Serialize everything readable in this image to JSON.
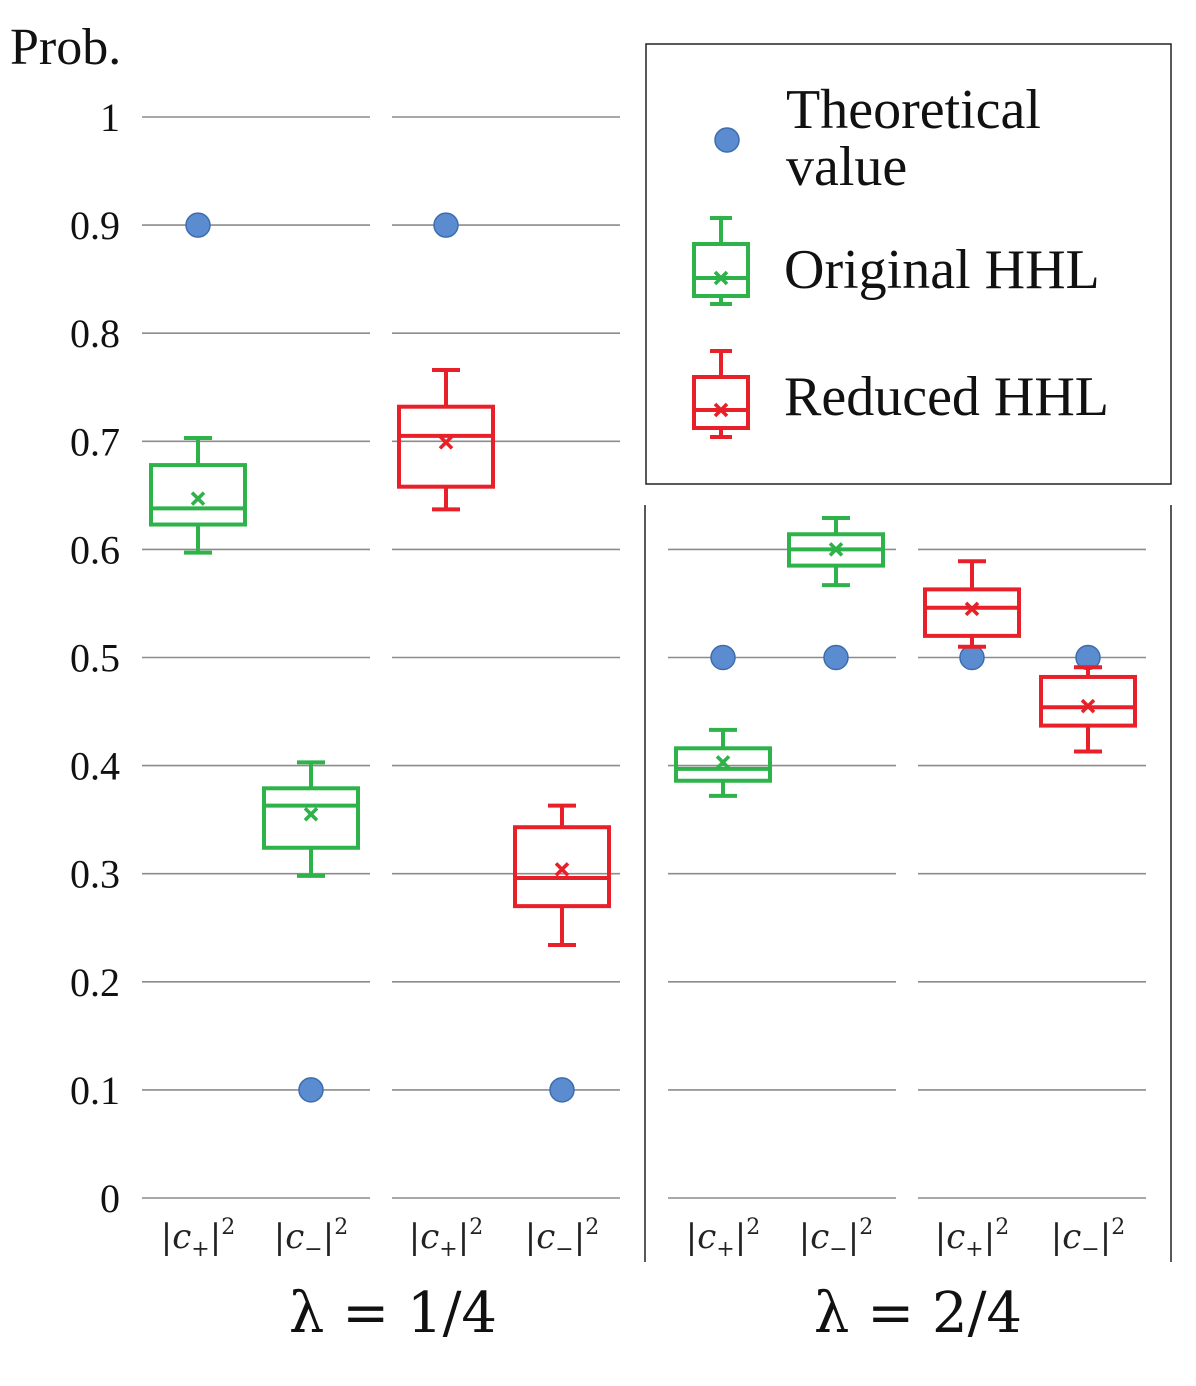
{
  "colors": {
    "theoretical": "#5b8ccf",
    "theoretical_edge": "#3d6db0",
    "original": "#2db34a",
    "reduced": "#e8202a",
    "grid": "#8c8c8c",
    "axis_text": "#111111"
  },
  "legend": {
    "theoretical_line1": "Theoretical",
    "theoretical_line2": "value",
    "original": "Original HHL",
    "reduced": "Reduced HHL"
  },
  "chart_data": {
    "type": "box",
    "ylabel": "Prob.",
    "ylim": [
      0,
      1
    ],
    "yticks": [
      0,
      0.1,
      0.2,
      0.3,
      0.4,
      0.5,
      0.6,
      0.7,
      0.8,
      0.9,
      1
    ],
    "ytick_labels": [
      "0",
      "0.1",
      "0.2",
      "0.3",
      "0.4",
      "0.5",
      "0.6",
      "0.7",
      "0.8",
      "0.9",
      "1"
    ],
    "categories_sym": [
      "c+",
      "c−"
    ],
    "category_labels": [
      "|c+|²",
      "|c−|²"
    ],
    "panels": [
      {
        "label": "λ = 1/4",
        "groups": [
          {
            "name": "Original HHL",
            "series_key": "original",
            "theoretical": [
              0.9,
              0.1
            ],
            "boxes": [
              {
                "whisker_low": 0.597,
                "q1": 0.623,
                "median": 0.638,
                "q3": 0.678,
                "whisker_high": 0.703,
                "mean": 0.647
              },
              {
                "whisker_low": 0.298,
                "q1": 0.324,
                "median": 0.363,
                "q3": 0.379,
                "whisker_high": 0.403,
                "mean": 0.355
              }
            ]
          },
          {
            "name": "Reduced HHL",
            "series_key": "reduced",
            "theoretical": [
              0.9,
              0.1
            ],
            "boxes": [
              {
                "whisker_low": 0.637,
                "q1": 0.658,
                "median": 0.705,
                "q3": 0.732,
                "whisker_high": 0.766,
                "mean": 0.699
              },
              {
                "whisker_low": 0.234,
                "q1": 0.27,
                "median": 0.296,
                "q3": 0.343,
                "whisker_high": 0.363,
                "mean": 0.304
              }
            ]
          }
        ]
      },
      {
        "label": "λ = 2/4",
        "groups": [
          {
            "name": "Original HHL",
            "series_key": "original",
            "theoretical": [
              0.5,
              0.5
            ],
            "boxes": [
              {
                "whisker_low": 0.372,
                "q1": 0.386,
                "median": 0.397,
                "q3": 0.416,
                "whisker_high": 0.433,
                "mean": 0.403
              },
              {
                "whisker_low": 0.567,
                "q1": 0.585,
                "median": 0.6,
                "q3": 0.614,
                "whisker_high": 0.629,
                "mean": 0.6
              }
            ]
          },
          {
            "name": "Reduced HHL",
            "series_key": "reduced",
            "theoretical": [
              0.5,
              0.5
            ],
            "boxes": [
              {
                "whisker_low": 0.51,
                "q1": 0.52,
                "median": 0.546,
                "q3": 0.563,
                "whisker_high": 0.589,
                "mean": 0.545
              },
              {
                "whisker_low": 0.413,
                "q1": 0.437,
                "median": 0.454,
                "q3": 0.482,
                "whisker_high": 0.491,
                "mean": 0.455
              }
            ]
          }
        ]
      }
    ]
  }
}
